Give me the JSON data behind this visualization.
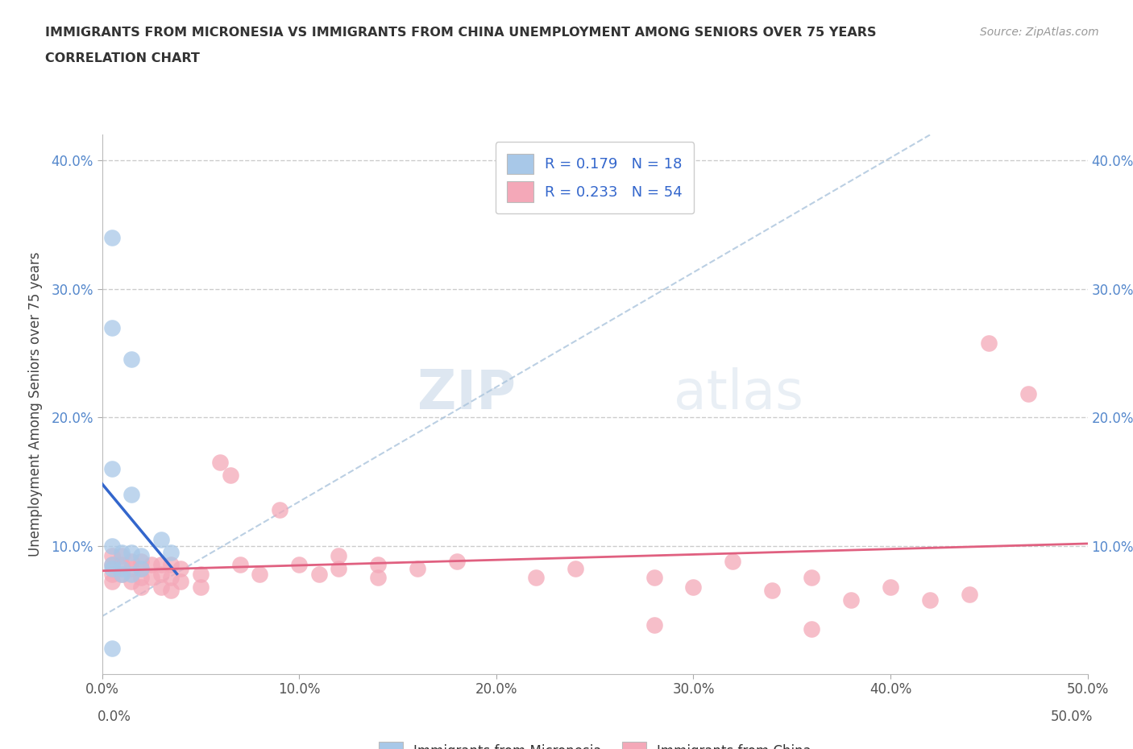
{
  "title_line1": "IMMIGRANTS FROM MICRONESIA VS IMMIGRANTS FROM CHINA UNEMPLOYMENT AMONG SENIORS OVER 75 YEARS",
  "title_line2": "CORRELATION CHART",
  "source_text": "Source: ZipAtlas.com",
  "ylabel": "Unemployment Among Seniors over 75 years",
  "xlim": [
    0.0,
    0.5
  ],
  "ylim": [
    0.0,
    0.42
  ],
  "xticks": [
    0.0,
    0.1,
    0.2,
    0.3,
    0.4,
    0.5
  ],
  "yticks": [
    0.1,
    0.2,
    0.3,
    0.4
  ],
  "legend_label1": "Immigrants from Micronesia",
  "legend_label2": "Immigrants from China",
  "micronesia_color": "#a8c8e8",
  "china_color": "#f4a8b8",
  "micronesia_line_color": "#3366cc",
  "china_line_color": "#e06080",
  "diagonal_color": "#aac4dc",
  "watermark_zip": "ZIP",
  "watermark_atlas": "atlas",
  "micronesia_points": [
    [
      0.005,
      0.34
    ],
    [
      0.005,
      0.27
    ],
    [
      0.015,
      0.245
    ],
    [
      0.005,
      0.16
    ],
    [
      0.015,
      0.14
    ],
    [
      0.005,
      0.1
    ],
    [
      0.01,
      0.095
    ],
    [
      0.015,
      0.095
    ],
    [
      0.005,
      0.085
    ],
    [
      0.005,
      0.082
    ],
    [
      0.01,
      0.082
    ],
    [
      0.01,
      0.078
    ],
    [
      0.015,
      0.078
    ],
    [
      0.02,
      0.092
    ],
    [
      0.02,
      0.082
    ],
    [
      0.03,
      0.105
    ],
    [
      0.035,
      0.095
    ],
    [
      0.005,
      0.02
    ]
  ],
  "china_points": [
    [
      0.005,
      0.092
    ],
    [
      0.005,
      0.085
    ],
    [
      0.005,
      0.078
    ],
    [
      0.005,
      0.072
    ],
    [
      0.01,
      0.092
    ],
    [
      0.01,
      0.085
    ],
    [
      0.01,
      0.078
    ],
    [
      0.015,
      0.088
    ],
    [
      0.015,
      0.082
    ],
    [
      0.015,
      0.072
    ],
    [
      0.02,
      0.088
    ],
    [
      0.02,
      0.082
    ],
    [
      0.02,
      0.075
    ],
    [
      0.02,
      0.068
    ],
    [
      0.025,
      0.085
    ],
    [
      0.025,
      0.075
    ],
    [
      0.03,
      0.085
    ],
    [
      0.03,
      0.078
    ],
    [
      0.03,
      0.068
    ],
    [
      0.035,
      0.085
    ],
    [
      0.035,
      0.075
    ],
    [
      0.035,
      0.065
    ],
    [
      0.04,
      0.082
    ],
    [
      0.04,
      0.072
    ],
    [
      0.05,
      0.078
    ],
    [
      0.05,
      0.068
    ],
    [
      0.06,
      0.165
    ],
    [
      0.065,
      0.155
    ],
    [
      0.07,
      0.085
    ],
    [
      0.08,
      0.078
    ],
    [
      0.09,
      0.128
    ],
    [
      0.1,
      0.085
    ],
    [
      0.11,
      0.078
    ],
    [
      0.12,
      0.092
    ],
    [
      0.12,
      0.082
    ],
    [
      0.14,
      0.085
    ],
    [
      0.14,
      0.075
    ],
    [
      0.16,
      0.082
    ],
    [
      0.18,
      0.088
    ],
    [
      0.22,
      0.075
    ],
    [
      0.24,
      0.082
    ],
    [
      0.28,
      0.075
    ],
    [
      0.3,
      0.068
    ],
    [
      0.32,
      0.088
    ],
    [
      0.34,
      0.065
    ],
    [
      0.36,
      0.075
    ],
    [
      0.38,
      0.058
    ],
    [
      0.4,
      0.068
    ],
    [
      0.42,
      0.058
    ],
    [
      0.44,
      0.062
    ],
    [
      0.45,
      0.258
    ],
    [
      0.47,
      0.218
    ],
    [
      0.28,
      0.038
    ],
    [
      0.36,
      0.035
    ]
  ]
}
